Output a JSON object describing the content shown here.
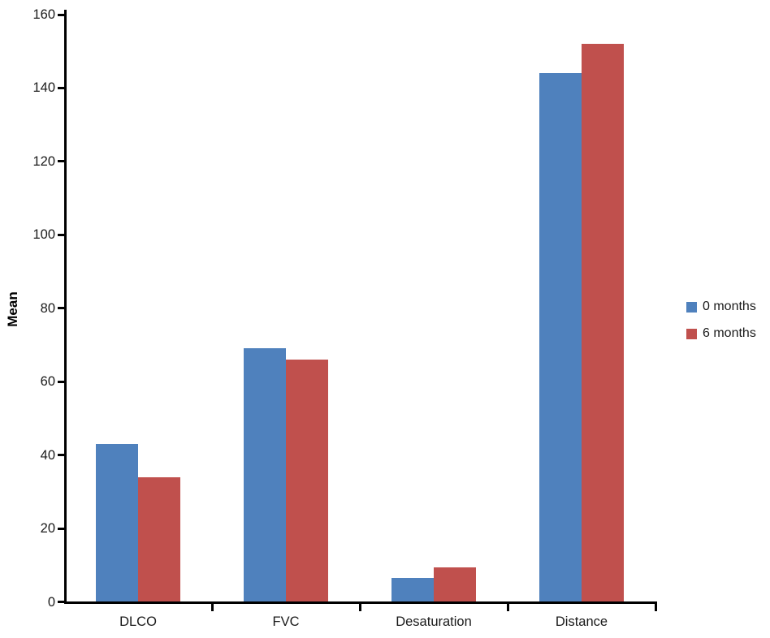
{
  "chart_data": {
    "type": "bar",
    "title": "",
    "categories": [
      "DLCO",
      "FVC",
      "Desaturation",
      "Distance"
    ],
    "series": [
      {
        "name": "0 months",
        "color": "#4F81BD",
        "values": [
          43,
          69,
          6.5,
          144
        ]
      },
      {
        "name": "6 months",
        "color": "#C0504D",
        "values": [
          34,
          66,
          9.5,
          152
        ]
      }
    ],
    "xlabel": "",
    "ylabel": "Mean",
    "ylim": [
      0,
      160
    ],
    "ytick_step": 20,
    "ytick_labels": [
      "0",
      "20",
      "40",
      "60",
      "80",
      "100",
      "120",
      "140",
      "160"
    ],
    "grid": false,
    "legend_position": "right",
    "axis_color": "#000000",
    "background_color": "#ffffff"
  }
}
